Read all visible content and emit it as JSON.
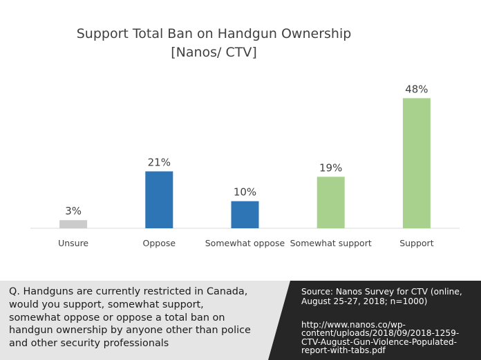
{
  "chart_data": {
    "type": "bar",
    "title_lines": [
      "Support Total Ban on Handgun Ownership",
      "[Nanos/ CTV]"
    ],
    "categories": [
      "Unsure",
      "Oppose",
      "Somewhat oppose",
      "Somewhat support",
      "Support"
    ],
    "values": [
      3,
      21,
      10,
      19,
      48
    ],
    "data_labels": [
      "3%",
      "21%",
      "10%",
      "19%",
      "48%"
    ],
    "bar_colors": [
      "#cbcbcb",
      "#2e75b6",
      "#2e75b6",
      "#a9d18e",
      "#a9d18e"
    ],
    "ylim": [
      0,
      50
    ],
    "grid": false,
    "legend": "none"
  },
  "footer": {
    "question_lines": [
      "Q. Handguns are currently restricted in Canada,",
      "would you support, somewhat support,",
      "somewhat oppose or oppose a total ban on",
      "handgun ownership by anyone other than police",
      "and other security professionals"
    ],
    "source_lines": [
      "Source:  Nanos Survey for CTV (online,",
      "August 25-27, 2018; n=1000)"
    ],
    "url_lines": [
      "http://www.nanos.co/wp-",
      "content/uploads/2018/09/2018-1259-",
      "CTV-August-Gun-Violence-Populated-",
      "report-with-tabs.pdf"
    ]
  },
  "colors": {
    "footer_left_bg": "#e5e5e5",
    "footer_right_bg": "#262626"
  }
}
